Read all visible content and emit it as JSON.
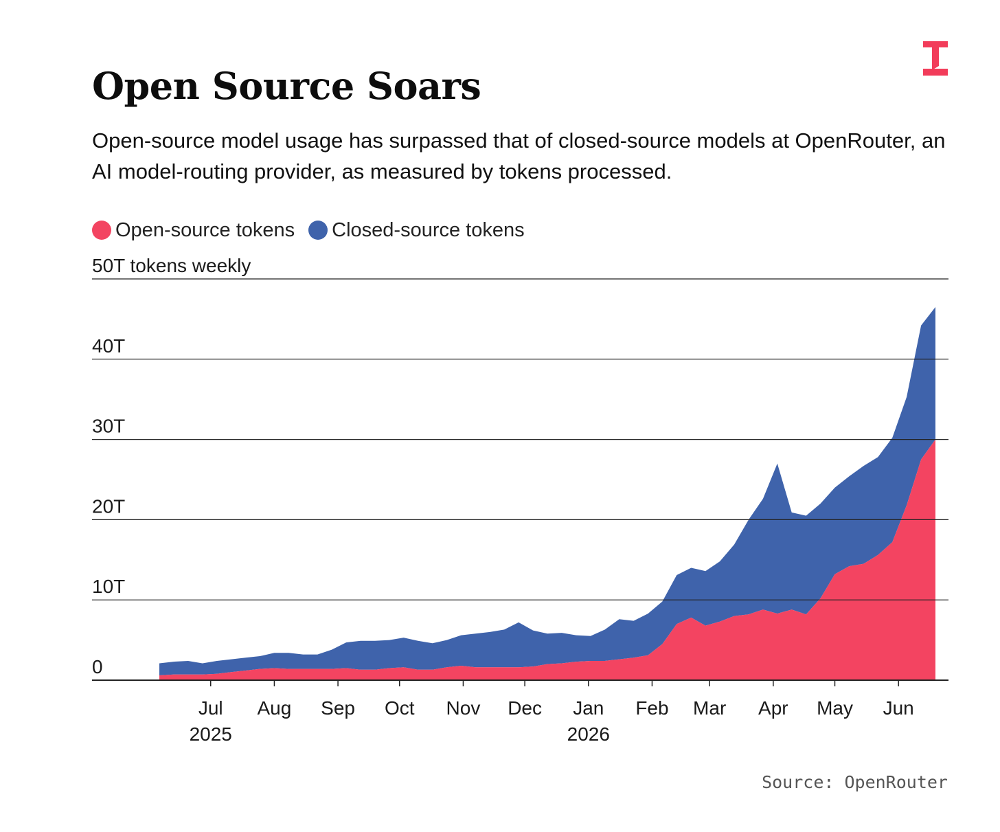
{
  "header": {
    "title": "Open Source Soars",
    "subtitle": "Open-source model usage has surpassed that of closed-source models at OpenRouter, an AI model-routing provider, as measured by tokens processed."
  },
  "footer": {
    "source": "Source: OpenRouter"
  },
  "colors": {
    "open": "#f34461",
    "closed": "#3f63ab",
    "logo": "#f23c5a",
    "grid": "#222222"
  },
  "chart_data": {
    "type": "area",
    "stacked": true,
    "ylabel": "50T tokens weekly",
    "ylim": [
      0,
      50
    ],
    "yticks": [
      {
        "value": 0,
        "label": "0"
      },
      {
        "value": 10,
        "label": "10T"
      },
      {
        "value": 20,
        "label": "20T"
      },
      {
        "value": 30,
        "label": "30T"
      },
      {
        "value": 40,
        "label": "40T"
      },
      {
        "value": 50,
        "label": "50T tokens weekly"
      }
    ],
    "xlim": [
      "2025-06-05",
      "2026-06-22"
    ],
    "xticks": [
      {
        "date": "2025-07-01",
        "label": "Jul",
        "sublabel": "2025"
      },
      {
        "date": "2025-08-01",
        "label": "Aug",
        "sublabel": ""
      },
      {
        "date": "2025-09-01",
        "label": "Sep",
        "sublabel": ""
      },
      {
        "date": "2025-10-01",
        "label": "Oct",
        "sublabel": ""
      },
      {
        "date": "2025-11-01",
        "label": "Nov",
        "sublabel": ""
      },
      {
        "date": "2025-12-01",
        "label": "Dec",
        "sublabel": ""
      },
      {
        "date": "2026-01-01",
        "label": "Jan",
        "sublabel": "2026"
      },
      {
        "date": "2026-02-01",
        "label": "Feb",
        "sublabel": ""
      },
      {
        "date": "2026-03-01",
        "label": "Mar",
        "sublabel": ""
      },
      {
        "date": "2026-04-01",
        "label": "Apr",
        "sublabel": ""
      },
      {
        "date": "2026-05-01",
        "label": "May",
        "sublabel": ""
      },
      {
        "date": "2026-06-01",
        "label": "Jun",
        "sublabel": ""
      }
    ],
    "x": [
      "2025-06-06",
      "2025-06-13",
      "2025-06-20",
      "2025-06-27",
      "2025-07-04",
      "2025-07-11",
      "2025-07-18",
      "2025-07-25",
      "2025-08-01",
      "2025-08-08",
      "2025-08-15",
      "2025-08-22",
      "2025-08-29",
      "2025-09-05",
      "2025-09-12",
      "2025-09-19",
      "2025-09-26",
      "2025-10-03",
      "2025-10-10",
      "2025-10-17",
      "2025-10-24",
      "2025-10-31",
      "2025-11-07",
      "2025-11-14",
      "2025-11-21",
      "2025-11-28",
      "2025-12-05",
      "2025-12-12",
      "2025-12-19",
      "2025-12-26",
      "2026-01-02",
      "2026-01-09",
      "2026-01-16",
      "2026-01-23",
      "2026-01-30",
      "2026-02-06",
      "2026-02-13",
      "2026-02-20",
      "2026-02-27",
      "2026-03-06",
      "2026-03-13",
      "2026-03-20",
      "2026-03-27",
      "2026-04-03",
      "2026-04-10",
      "2026-04-17",
      "2026-04-24",
      "2026-05-01",
      "2026-05-08",
      "2026-05-15",
      "2026-05-22",
      "2026-05-29",
      "2026-06-05",
      "2026-06-12",
      "2026-06-19"
    ],
    "series": [
      {
        "name": "Open-source tokens",
        "color": "#f34461",
        "values": [
          0.6,
          0.7,
          0.7,
          0.7,
          0.8,
          1.0,
          1.2,
          1.4,
          1.5,
          1.4,
          1.4,
          1.4,
          1.4,
          1.5,
          1.3,
          1.3,
          1.5,
          1.6,
          1.3,
          1.3,
          1.6,
          1.8,
          1.6,
          1.6,
          1.6,
          1.6,
          1.7,
          2.0,
          2.1,
          2.3,
          2.4,
          2.4,
          2.6,
          2.8,
          3.1,
          4.5,
          7.0,
          7.8,
          6.8,
          7.3,
          8.0,
          8.2,
          8.8,
          8.3,
          8.8,
          8.2,
          10.2,
          13.2,
          14.2,
          14.5,
          15.6,
          17.2,
          21.8,
          27.5,
          30.0
        ]
      },
      {
        "name": "Closed-source tokens",
        "color": "#3f63ab",
        "values": [
          1.5,
          1.6,
          1.7,
          1.4,
          1.6,
          1.6,
          1.6,
          1.6,
          1.9,
          2.0,
          1.8,
          1.8,
          2.4,
          3.2,
          3.6,
          3.6,
          3.5,
          3.7,
          3.6,
          3.3,
          3.4,
          3.8,
          4.2,
          4.4,
          4.7,
          5.6,
          4.5,
          3.8,
          3.8,
          3.3,
          3.1,
          3.9,
          5.0,
          4.6,
          5.2,
          5.3,
          6.1,
          6.2,
          6.8,
          7.5,
          8.9,
          11.8,
          13.8,
          18.7,
          12.1,
          12.3,
          11.8,
          10.8,
          11.2,
          12.2,
          12.2,
          13.0,
          13.5,
          16.7,
          16.5
        ]
      }
    ],
    "legend": "top-left",
    "grid": "horizontal"
  }
}
